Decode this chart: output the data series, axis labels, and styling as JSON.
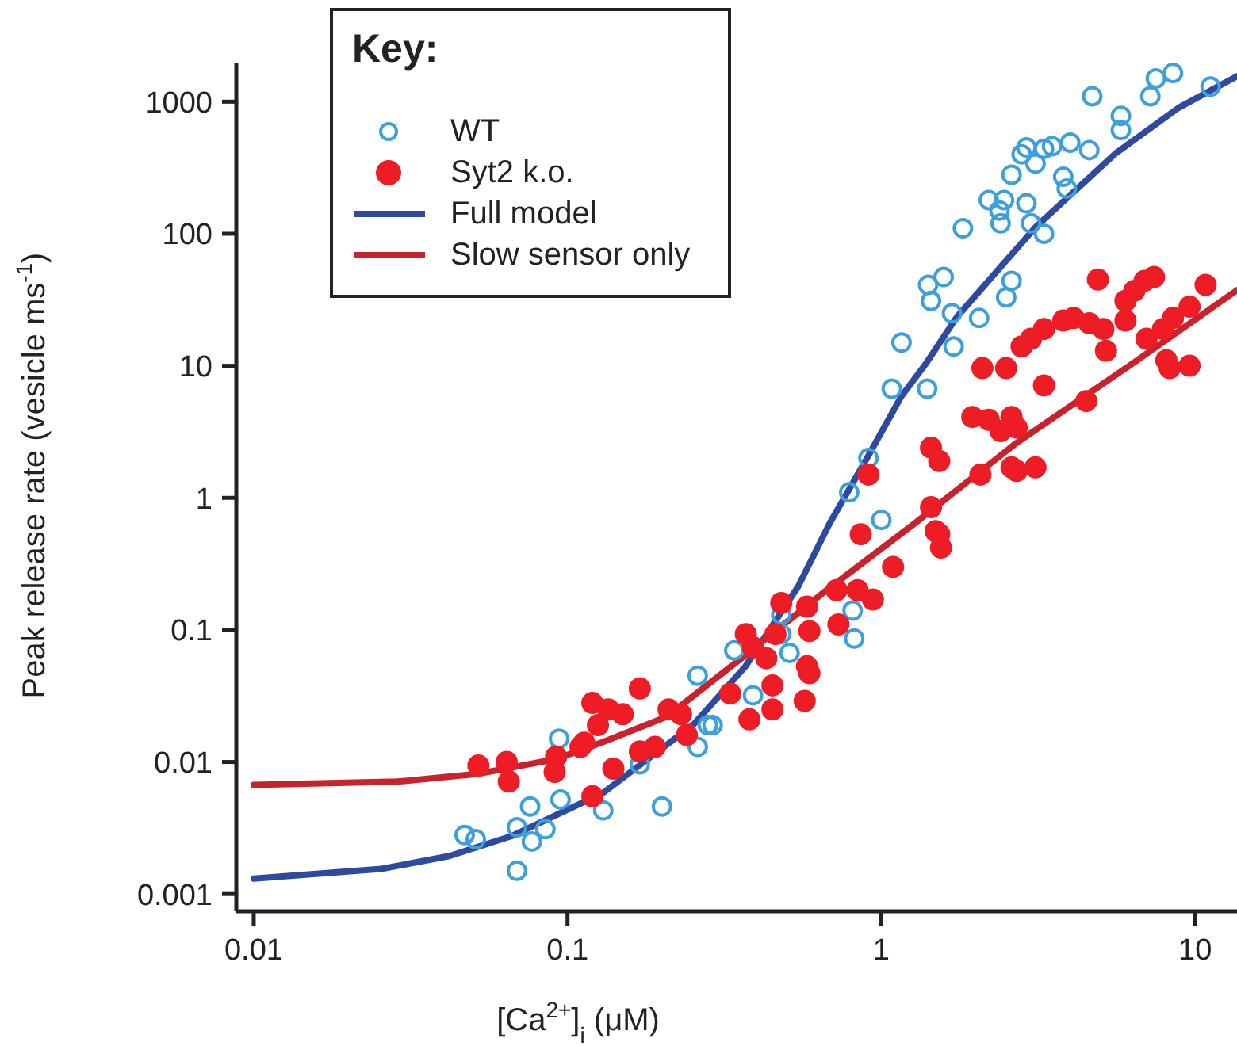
{
  "chart_data": {
    "type": "scatter",
    "xlabel": "[Ca$^{2+}$]$_{i}$ (μM)",
    "ylabel": "Peak release rate (vesicle ms$^{-1}$)",
    "legend_title": "Key:",
    "legend": "top left",
    "log": "xy",
    "xlim": [
      0.0088,
      13.6
    ],
    "ylim": [
      0.00074,
      1950
    ],
    "xticks": [
      0.01,
      0.1,
      1,
      10
    ],
    "yticks": [
      0.001,
      0.01,
      0.1,
      1,
      10,
      100,
      1000
    ],
    "series": [
      {
        "name": "WT",
        "marker": "circle",
        "color": "#3d9fdc",
        "x": [
          0.047,
          0.051,
          0.069,
          0.076,
          0.085,
          0.077,
          0.069,
          0.095,
          0.094,
          0.13,
          0.2,
          0.17,
          0.26,
          0.26,
          0.28,
          0.29,
          0.39,
          0.34,
          0.48,
          0.51,
          0.48,
          0.81,
          0.82,
          1.0,
          1.08,
          1.4,
          0.91,
          0.79,
          1.16,
          1.7,
          1.68,
          2.05,
          1.41,
          1.58,
          1.44,
          2.6,
          2.5,
          1.82,
          2.4,
          3.0,
          3.3,
          2.2,
          2.46,
          2.38,
          2.9,
          2.6,
          3.8,
          3.9,
          3.1,
          2.8,
          2.9,
          3.3,
          3.5,
          4.0,
          4.6,
          4.7,
          5.8,
          5.8,
          7.2,
          7.5,
          8.5,
          11.2
        ],
        "values": [
          0.0028,
          0.0026,
          0.0032,
          0.0046,
          0.0031,
          0.0025,
          0.0015,
          0.0052,
          0.015,
          0.0043,
          0.0046,
          0.0096,
          0.013,
          0.045,
          0.019,
          0.019,
          0.032,
          0.07,
          0.13,
          0.067,
          0.093,
          0.14,
          0.086,
          0.68,
          6.7,
          6.7,
          2.0,
          1.1,
          15,
          14,
          25,
          23,
          41,
          47,
          31,
          44,
          33,
          110,
          120,
          120,
          100,
          180,
          180,
          150,
          170,
          280,
          270,
          220,
          340,
          400,
          450,
          440,
          460,
          490,
          430,
          1100,
          780,
          610,
          1100,
          1500,
          1650,
          1300
        ]
      },
      {
        "name": "Syt2 k.o.",
        "marker": "circle",
        "color": "#ee1c25",
        "x": [
          0.052,
          0.064,
          0.065,
          0.092,
          0.091,
          0.11,
          0.12,
          0.125,
          0.12,
          0.135,
          0.15,
          0.113,
          0.14,
          0.17,
          0.19,
          0.17,
          0.21,
          0.24,
          0.23,
          0.33,
          0.37,
          0.39,
          0.43,
          0.46,
          0.48,
          0.45,
          0.38,
          0.45,
          0.58,
          0.59,
          0.58,
          0.59,
          0.57,
          0.72,
          0.73,
          0.84,
          0.94,
          0.86,
          1.09,
          0.91,
          1.49,
          1.44,
          1.53,
          1.44,
          1.53,
          1.55,
          2.07,
          2.6,
          3.1,
          2.7,
          1.95,
          2.2,
          2.6,
          2.4,
          2.7,
          3.3,
          2.1,
          2.5,
          4.5,
          8.3,
          9.6,
          4.9,
          2.8,
          3.0,
          3.3,
          3.8,
          4.1,
          4.6,
          5.1,
          5.2,
          6.0,
          6.4,
          6.9,
          7.4,
          6.0,
          7.0,
          7.9,
          8.5,
          9.6,
          10.8,
          8.1
        ],
        "values": [
          0.0094,
          0.01,
          0.0071,
          0.011,
          0.0084,
          0.013,
          0.028,
          0.019,
          0.0055,
          0.025,
          0.023,
          0.014,
          0.0089,
          0.012,
          0.013,
          0.036,
          0.025,
          0.016,
          0.023,
          0.033,
          0.093,
          0.074,
          0.061,
          0.093,
          0.16,
          0.038,
          0.021,
          0.025,
          0.15,
          0.098,
          0.053,
          0.047,
          0.029,
          0.2,
          0.11,
          0.2,
          0.17,
          0.53,
          0.3,
          1.5,
          0.56,
          2.4,
          1.9,
          0.85,
          0.53,
          0.42,
          1.5,
          1.7,
          1.7,
          1.6,
          4.1,
          3.9,
          4.1,
          3.2,
          3.4,
          7.1,
          9.6,
          9.6,
          5.4,
          9.6,
          10,
          45,
          14,
          16,
          19,
          22,
          23,
          21,
          19,
          13,
          31,
          37,
          44,
          47,
          22,
          16,
          19,
          23,
          28,
          41,
          11
        ]
      },
      {
        "name": "Full model",
        "type": "line",
        "color": "#2e4aa0",
        "x": [
          0.01,
          0.0255,
          0.042,
          0.067,
          0.13,
          0.252,
          0.37,
          0.543,
          0.685,
          0.906,
          1.16,
          1.38,
          1.74,
          3.11,
          5.56,
          8.85,
          13.6
        ],
        "values": [
          0.00131,
          0.00155,
          0.00194,
          0.00277,
          0.00585,
          0.0192,
          0.0534,
          0.213,
          0.643,
          2.05,
          5.9,
          10.2,
          23.4,
          113,
          403,
          898,
          1560
        ]
      },
      {
        "name": "Slow sensor only",
        "type": "line",
        "color": "#c8232c",
        "x": [
          0.01,
          0.0286,
          0.0513,
          0.0917,
          0.13,
          0.207,
          0.37,
          0.662,
          1.28,
          2.67,
          6.24,
          13.6
        ],
        "values": [
          0.0067,
          0.0071,
          0.0081,
          0.0105,
          0.0142,
          0.022,
          0.0648,
          0.196,
          0.643,
          2.56,
          10.2,
          37.4
        ]
      }
    ]
  }
}
